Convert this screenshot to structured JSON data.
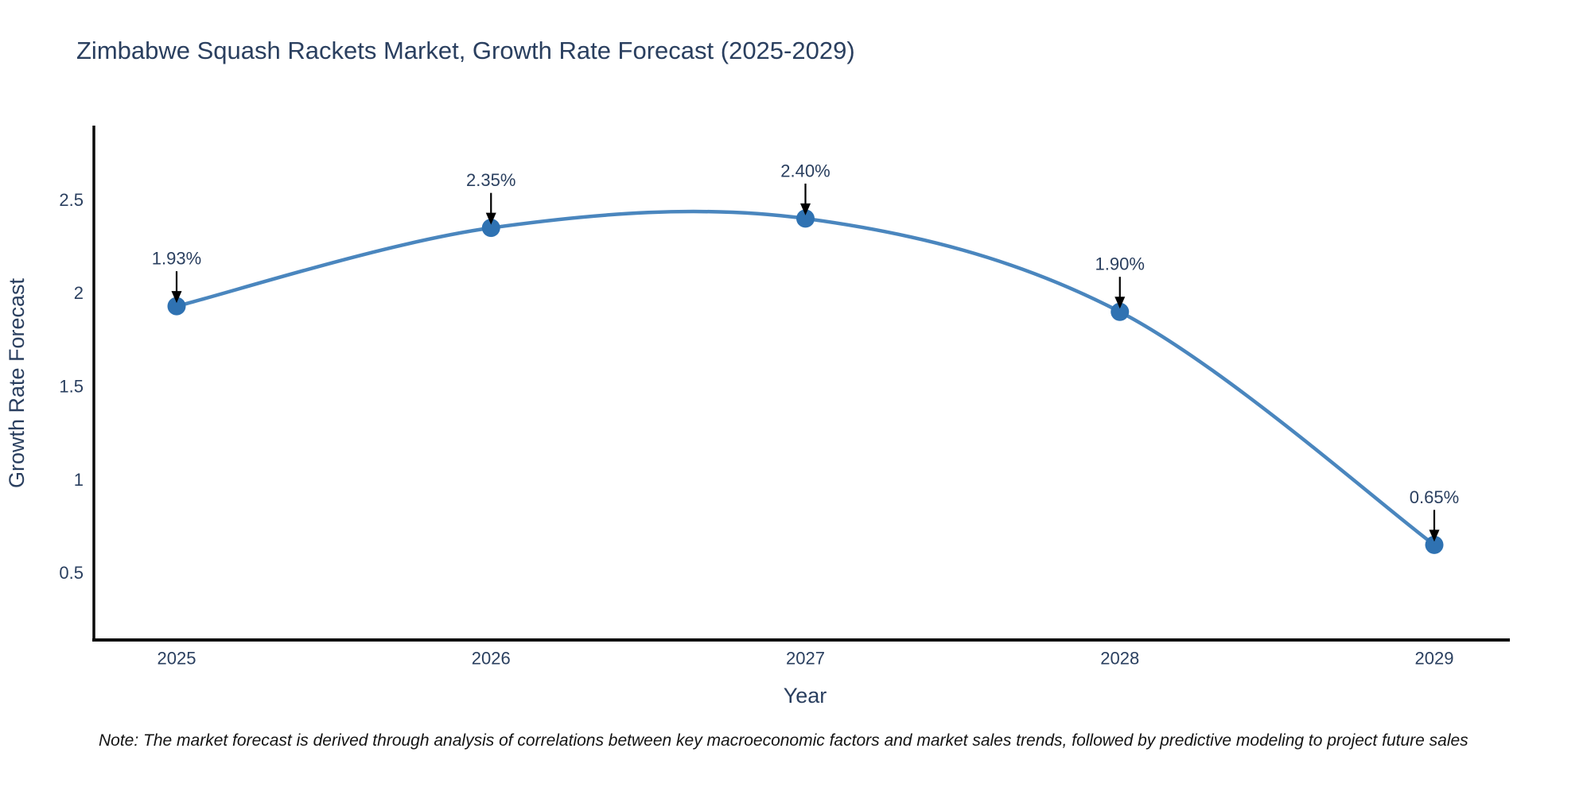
{
  "header": {
    "title": "Zimbabwe Squash Rackets Market, Growth Rate Forecast (2025-2029)"
  },
  "chart_data": {
    "type": "line",
    "title": "Zimbabwe Squash Rackets Market, Growth Rate Forecast (2025-2029)",
    "x": [
      2025,
      2026,
      2027,
      2028,
      2029
    ],
    "values": [
      1.93,
      2.35,
      2.4,
      1.9,
      0.65
    ],
    "point_labels": [
      "1.93%",
      "2.35%",
      "2.40%",
      "1.90%",
      "0.65%"
    ],
    "xlabel": "Year",
    "ylabel": "Growth Rate Forecast",
    "ylim": [
      0.14,
      2.89
    ],
    "yticks": [
      0.5,
      1,
      1.5,
      2,
      2.5
    ],
    "grid": false,
    "legend": "none",
    "line_shape": "spline"
  },
  "colors": {
    "line": "#4a86be",
    "marker": "#2f72b2",
    "text": "#2a3f5f",
    "axis": "#0a0a0a",
    "arrow": "#000000",
    "note_text": "#141414"
  },
  "footer": {
    "note": "Note: The market forecast is derived through analysis of correlations between key macroeconomic factors and market sales trends, followed by predictive modeling to project future sales"
  }
}
